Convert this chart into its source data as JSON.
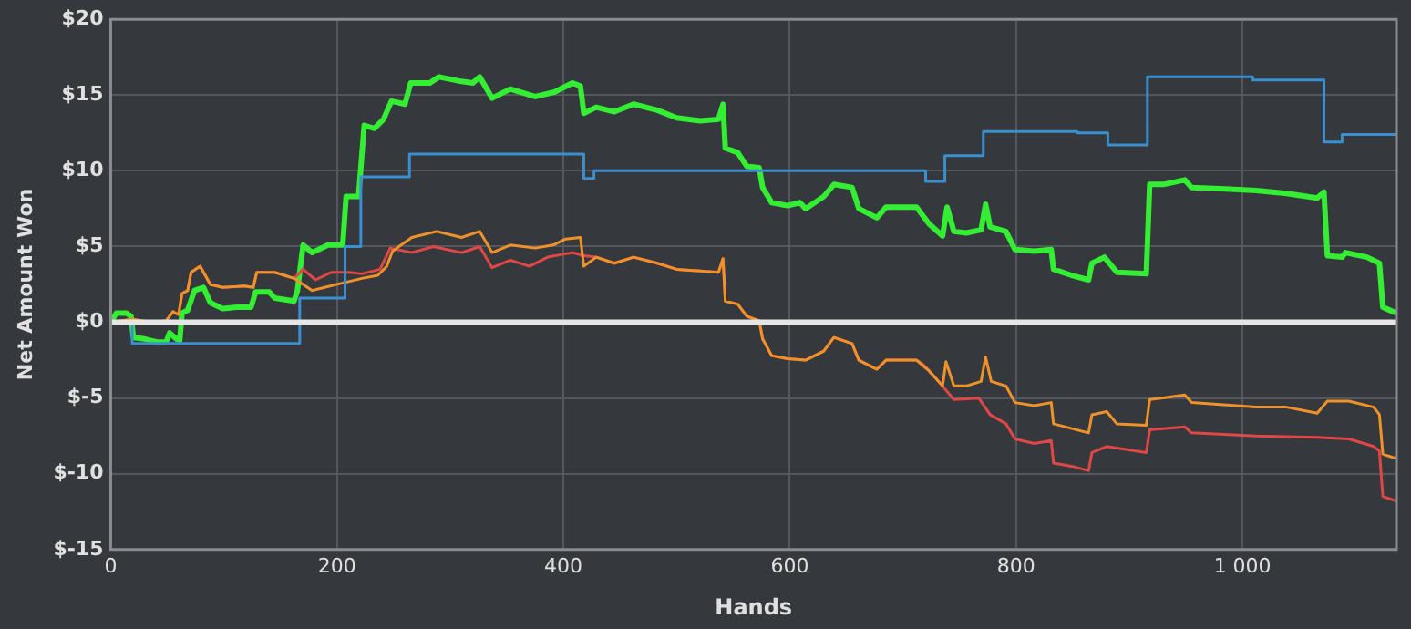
{
  "chart_data": {
    "type": "line",
    "xlabel": "Hands",
    "ylabel": "Net Amount Won",
    "xlim": [
      0,
      1136
    ],
    "ylim": [
      -15,
      20
    ],
    "xticks": [
      0,
      200,
      400,
      600,
      800,
      {
        "value": 1000,
        "label": "1 000"
      }
    ],
    "yticks": [
      {
        "value": -15,
        "label": "$-15"
      },
      {
        "value": -10,
        "label": "$-10"
      },
      {
        "value": -5,
        "label": "$-5"
      },
      {
        "value": 0,
        "label": "$0"
      },
      {
        "value": 5,
        "label": "$5"
      },
      {
        "value": 10,
        "label": "$10"
      },
      {
        "value": 15,
        "label": "$15"
      },
      {
        "value": 20,
        "label": "$20"
      }
    ],
    "grid": true,
    "legend": false,
    "marker": "none",
    "line_style": "solid",
    "ref_lines": [
      {
        "axis": "y",
        "value": 0,
        "color": "#e6e6e6"
      }
    ],
    "series": [
      {
        "color": "#3a8fd0",
        "x": [
          0,
          19,
          19,
          167,
          167,
          207,
          207,
          221,
          221,
          264,
          264,
          418,
          418,
          427,
          427,
          720,
          720,
          737,
          737,
          771,
          771,
          854,
          854,
          881,
          881,
          916,
          916,
          1009,
          1009,
          1072,
          1072,
          1088,
          1088,
          1136
        ],
        "values": [
          0,
          0,
          -1.4,
          -1.4,
          1.6,
          1.6,
          5.0,
          5.0,
          9.6,
          9.6,
          11.1,
          11.1,
          9.5,
          9.5,
          10.0,
          10.0,
          9.3,
          9.3,
          11.0,
          11.0,
          12.6,
          12.6,
          12.5,
          12.5,
          11.7,
          11.7,
          16.2,
          16.2,
          16.0,
          16.0,
          11.9,
          11.9,
          12.4,
          12.4
        ]
      },
      {
        "color": "#f0922a",
        "x": [
          0,
          19,
          36,
          49,
          55,
          60,
          63,
          68,
          71,
          79,
          88,
          99,
          118,
          126,
          129,
          145,
          162,
          170,
          178,
          189,
          205,
          222,
          236,
          244,
          249,
          266,
          288,
          310,
          326,
          337,
          353,
          375,
          391,
          402,
          415,
          418,
          429,
          445,
          462,
          483,
          500,
          537,
          541,
          543,
          554,
          562,
          573,
          576,
          584,
          598,
          614,
          630,
          639,
          655,
          661,
          677,
          685,
          712,
          723,
          735,
          738,
          745,
          756,
          769,
          773,
          778,
          791,
          799,
          816,
          831,
          833,
          864,
          867,
          880,
          889,
          915,
          918,
          949,
          955,
          1012,
          1039,
          1066,
          1075,
          1094,
          1116,
          1121,
          1124,
          1136
        ],
        "values": [
          0,
          0.2,
          0,
          0.1,
          0.7,
          0.5,
          1.9,
          2.1,
          3.3,
          3.7,
          2.5,
          2.3,
          2.4,
          2.3,
          3.3,
          3.3,
          2.9,
          2.5,
          2.1,
          2.3,
          2.6,
          2.9,
          3.1,
          3.7,
          4.7,
          5.6,
          6.0,
          5.6,
          6.0,
          4.6,
          5.1,
          4.9,
          5.1,
          5.5,
          5.6,
          3.7,
          4.3,
          3.9,
          4.3,
          3.9,
          3.5,
          3.3,
          4.2,
          1.4,
          1.2,
          0.4,
          0.1,
          -1.1,
          -2.2,
          -2.4,
          -2.5,
          -1.9,
          -1.0,
          -1.4,
          -2.5,
          -3.1,
          -2.5,
          -2.5,
          -3.2,
          -4.2,
          -2.6,
          -4.2,
          -4.2,
          -3.9,
          -2.3,
          -3.9,
          -4.2,
          -5.3,
          -5.5,
          -5.3,
          -6.7,
          -7.3,
          -6.1,
          -5.9,
          -6.7,
          -6.8,
          -5.1,
          -4.8,
          -5.3,
          -5.6,
          -5.6,
          -6.0,
          -5.2,
          -5.2,
          -5.6,
          -6.1,
          -8.7,
          -9.0
        ]
      },
      {
        "color": "#e04848",
        "x": [
          0,
          19,
          36,
          49,
          55,
          60,
          63,
          68,
          71,
          79,
          88,
          99,
          118,
          126,
          129,
          145,
          162,
          170,
          181,
          195,
          211,
          222,
          238,
          247,
          266,
          285,
          310,
          326,
          337,
          353,
          370,
          386,
          408,
          418,
          429,
          445,
          462,
          483,
          500,
          537,
          541,
          543,
          554,
          562,
          573,
          576,
          584,
          598,
          614,
          630,
          639,
          655,
          661,
          677,
          685,
          712,
          718,
          728,
          745,
          767,
          777,
          791,
          799,
          816,
          831,
          833,
          849,
          864,
          867,
          880,
          915,
          918,
          949,
          955,
          1012,
          1066,
          1094,
          1116,
          1121,
          1124,
          1136
        ],
        "values": [
          0,
          0.2,
          0,
          0.1,
          0.7,
          0.5,
          1.9,
          2.1,
          3.3,
          3.7,
          2.5,
          2.3,
          2.4,
          2.3,
          3.3,
          3.3,
          2.9,
          3.5,
          2.8,
          3.3,
          3.3,
          3.2,
          3.5,
          4.9,
          4.6,
          5.0,
          4.6,
          5.0,
          3.6,
          4.1,
          3.7,
          4.3,
          4.6,
          4.4,
          4.3,
          3.9,
          4.3,
          3.9,
          3.5,
          3.3,
          4.2,
          1.4,
          1.2,
          0.4,
          0.1,
          -1.1,
          -2.2,
          -2.4,
          -2.5,
          -1.9,
          -1.0,
          -1.4,
          -2.5,
          -3.1,
          -2.5,
          -2.5,
          -2.8,
          -3.6,
          -5.1,
          -5.0,
          -6.1,
          -6.7,
          -7.7,
          -8.0,
          -7.8,
          -9.3,
          -9.5,
          -9.8,
          -8.6,
          -8.2,
          -8.6,
          -7.1,
          -6.9,
          -7.3,
          -7.5,
          -7.6,
          -7.7,
          -8.2,
          -8.5,
          -11.5,
          -11.8
        ]
      },
      {
        "color": "#33ee33",
        "x": [
          0,
          5,
          14,
          18,
          20,
          30,
          41,
          49,
          52,
          58,
          61,
          63,
          68,
          74,
          82,
          88,
          99,
          112,
          124,
          128,
          140,
          145,
          162,
          165,
          170,
          178,
          192,
          205,
          208,
          219,
          224,
          233,
          241,
          248,
          260,
          265,
          282,
          290,
          310,
          320,
          326,
          337,
          353,
          375,
          392,
          408,
          415,
          418,
          429,
          445,
          462,
          483,
          500,
          521,
          537,
          541,
          543,
          554,
          562,
          573,
          576,
          584,
          598,
          609,
          614,
          630,
          639,
          655,
          661,
          677,
          685,
          712,
          723,
          735,
          739,
          745,
          756,
          769,
          773,
          777,
          791,
          799,
          816,
          831,
          833,
          849,
          864,
          867,
          878,
          889,
          915,
          918,
          930,
          949,
          955,
          985,
          1012,
          1039,
          1066,
          1072,
          1075,
          1088,
          1091,
          1110,
          1121,
          1124,
          1136
        ],
        "values": [
          0,
          0.6,
          0.6,
          0.4,
          -1,
          -1.1,
          -1.3,
          -1.3,
          -0.7,
          -1.1,
          -1.2,
          0.6,
          0.8,
          2.1,
          2.3,
          1.3,
          0.9,
          1.0,
          1.0,
          2.0,
          2.0,
          1.6,
          1.4,
          2.1,
          5.1,
          4.6,
          5.1,
          5.1,
          8.3,
          8.3,
          13.0,
          12.8,
          13.4,
          14.6,
          14.4,
          15.8,
          15.8,
          16.2,
          15.9,
          15.8,
          16.2,
          14.8,
          15.4,
          14.9,
          15.2,
          15.8,
          15.6,
          13.8,
          14.2,
          13.9,
          14.4,
          14.0,
          13.5,
          13.3,
          13.4,
          14.4,
          11.5,
          11.2,
          10.3,
          10.2,
          8.9,
          7.9,
          7.7,
          7.9,
          7.5,
          8.3,
          9.1,
          8.9,
          7.5,
          6.9,
          7.6,
          7.6,
          6.5,
          5.7,
          7.6,
          6.0,
          5.9,
          6.1,
          7.8,
          6.3,
          6.0,
          4.8,
          4.7,
          4.8,
          3.5,
          3.1,
          2.8,
          3.9,
          4.3,
          3.3,
          3.2,
          9.1,
          9.1,
          9.4,
          8.9,
          8.8,
          8.7,
          8.5,
          8.2,
          8.6,
          4.4,
          4.3,
          4.6,
          4.3,
          3.9,
          1.0,
          0.6
        ]
      }
    ]
  }
}
